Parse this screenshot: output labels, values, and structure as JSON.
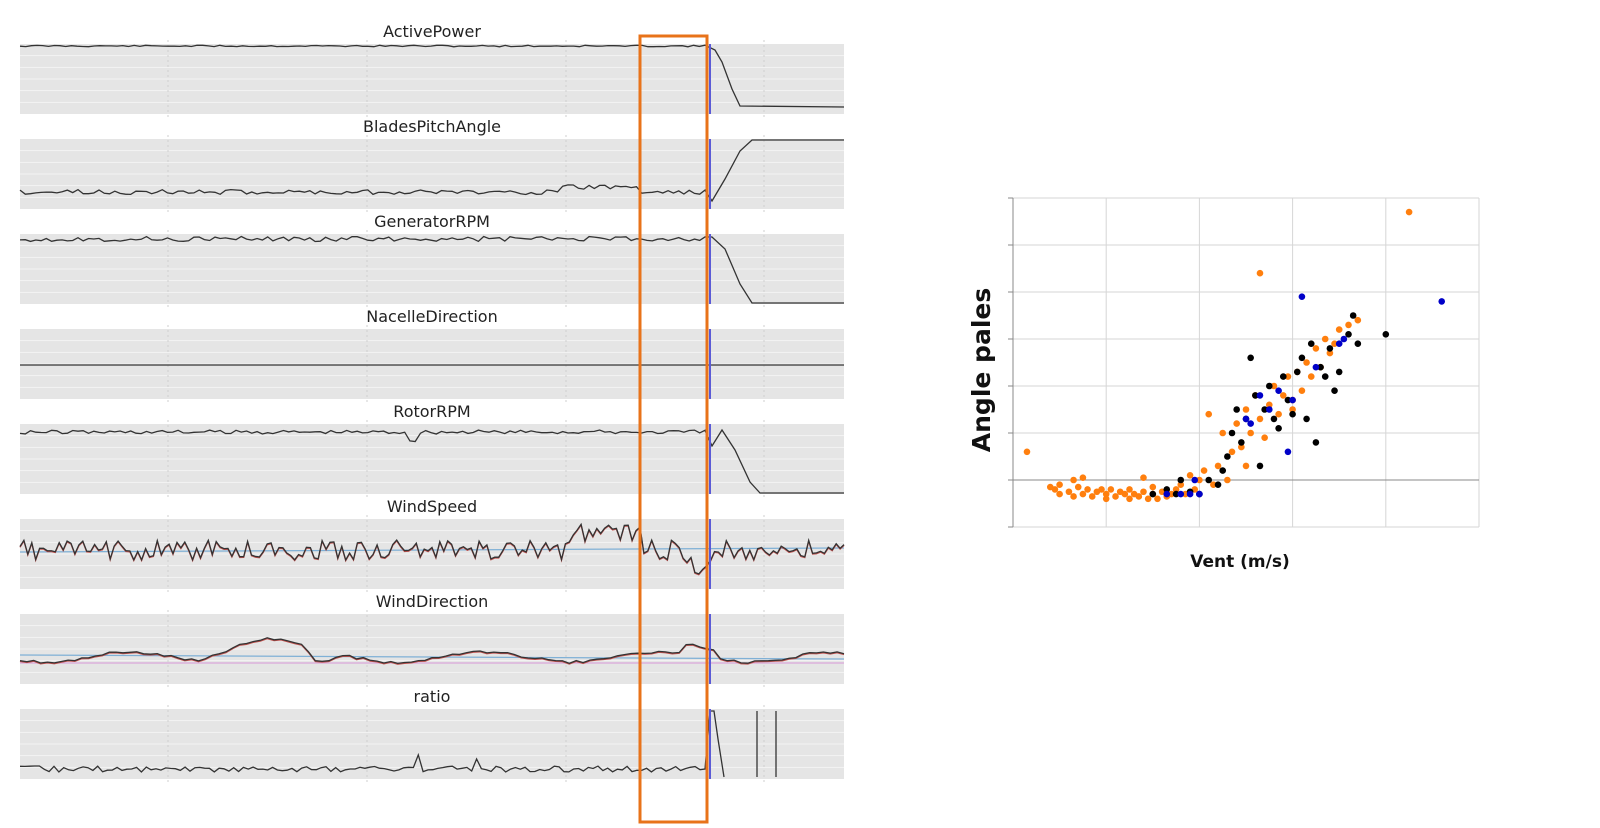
{
  "chart_data": [
    {
      "type": "line",
      "subplots": true,
      "panels": [
        {
          "title": "ActivePower"
        },
        {
          "title": "BladesPitchAngle"
        },
        {
          "title": "GeneratorRPM"
        },
        {
          "title": "NacelleDirection"
        },
        {
          "title": "RotorRPM"
        },
        {
          "title": "WindSpeed"
        },
        {
          "title": "WindDirection"
        },
        {
          "title": "ratio"
        }
      ],
      "grid": true,
      "highlight_box": "orange vertical rectangle spanning all panels, just before the event line",
      "event_line_color": "#5b5bd6"
    },
    {
      "type": "scatter",
      "title": "",
      "xlabel": "Vent (m/s)",
      "ylabel": "Angle pales",
      "xlim": [
        0,
        10
      ],
      "ylim": [
        -1,
        6
      ],
      "grid": true,
      "series": [
        {
          "color": "#ff7f0e",
          "points": [
            [
              0.3,
              0.6
            ],
            [
              0.8,
              -0.15
            ],
            [
              0.9,
              -0.2
            ],
            [
              1.0,
              -0.1
            ],
            [
              1.0,
              -0.3
            ],
            [
              1.2,
              -0.25
            ],
            [
              1.3,
              0.0
            ],
            [
              1.3,
              -0.35
            ],
            [
              1.4,
              -0.15
            ],
            [
              1.5,
              0.05
            ],
            [
              1.5,
              -0.3
            ],
            [
              1.6,
              -0.2
            ],
            [
              1.7,
              -0.35
            ],
            [
              1.8,
              -0.25
            ],
            [
              1.9,
              -0.2
            ],
            [
              2.0,
              -0.3
            ],
            [
              2.0,
              -0.4
            ],
            [
              2.1,
              -0.2
            ],
            [
              2.2,
              -0.35
            ],
            [
              2.3,
              -0.25
            ],
            [
              2.4,
              -0.3
            ],
            [
              2.5,
              -0.4
            ],
            [
              2.5,
              -0.2
            ],
            [
              2.6,
              -0.3
            ],
            [
              2.7,
              -0.35
            ],
            [
              2.8,
              -0.25
            ],
            [
              2.8,
              0.05
            ],
            [
              2.9,
              -0.4
            ],
            [
              3.0,
              -0.3
            ],
            [
              3.0,
              -0.15
            ],
            [
              3.1,
              -0.4
            ],
            [
              3.2,
              -0.25
            ],
            [
              3.3,
              -0.35
            ],
            [
              3.4,
              -0.3
            ],
            [
              3.5,
              -0.2
            ],
            [
              3.6,
              -0.1
            ],
            [
              3.7,
              -0.3
            ],
            [
              3.8,
              0.1
            ],
            [
              3.9,
              -0.2
            ],
            [
              4.0,
              0.0
            ],
            [
              4.1,
              0.2
            ],
            [
              4.2,
              1.4
            ],
            [
              4.3,
              -0.1
            ],
            [
              4.4,
              0.3
            ],
            [
              4.5,
              1.0
            ],
            [
              4.6,
              0.0
            ],
            [
              4.7,
              0.6
            ],
            [
              4.8,
              1.2
            ],
            [
              4.9,
              0.7
            ],
            [
              5.0,
              1.5
            ],
            [
              5.0,
              0.3
            ],
            [
              5.1,
              1.0
            ],
            [
              5.2,
              1.8
            ],
            [
              5.3,
              1.3
            ],
            [
              5.3,
              4.4
            ],
            [
              5.4,
              0.9
            ],
            [
              5.5,
              1.6
            ],
            [
              5.6,
              2.0
            ],
            [
              5.7,
              1.4
            ],
            [
              5.8,
              1.8
            ],
            [
              5.9,
              2.2
            ],
            [
              6.0,
              1.7
            ],
            [
              6.0,
              1.5
            ],
            [
              6.1,
              2.3
            ],
            [
              6.2,
              1.9
            ],
            [
              6.3,
              2.5
            ],
            [
              6.4,
              2.2
            ],
            [
              6.5,
              2.8
            ],
            [
              6.6,
              2.4
            ],
            [
              6.7,
              3.0
            ],
            [
              6.8,
              2.7
            ],
            [
              6.9,
              2.9
            ],
            [
              7.0,
              3.2
            ],
            [
              7.2,
              3.3
            ],
            [
              7.4,
              3.4
            ],
            [
              8.5,
              5.7
            ]
          ]
        },
        {
          "color": "#000000",
          "points": [
            [
              3.0,
              -0.3
            ],
            [
              3.3,
              -0.2
            ],
            [
              3.5,
              -0.3
            ],
            [
              3.6,
              0.0
            ],
            [
              3.8,
              -0.25
            ],
            [
              4.0,
              -0.3
            ],
            [
              4.2,
              0.0
            ],
            [
              4.4,
              -0.1
            ],
            [
              4.5,
              0.2
            ],
            [
              4.6,
              0.5
            ],
            [
              4.7,
              1.0
            ],
            [
              4.8,
              1.5
            ],
            [
              4.9,
              0.8
            ],
            [
              5.0,
              1.3
            ],
            [
              5.1,
              2.6
            ],
            [
              5.2,
              1.8
            ],
            [
              5.3,
              0.3
            ],
            [
              5.4,
              1.5
            ],
            [
              5.5,
              2.0
            ],
            [
              5.6,
              1.3
            ],
            [
              5.7,
              1.1
            ],
            [
              5.8,
              2.2
            ],
            [
              5.9,
              1.7
            ],
            [
              6.0,
              1.4
            ],
            [
              6.1,
              2.3
            ],
            [
              6.2,
              2.6
            ],
            [
              6.3,
              1.3
            ],
            [
              6.4,
              2.9
            ],
            [
              6.5,
              0.8
            ],
            [
              6.6,
              2.4
            ],
            [
              6.7,
              2.2
            ],
            [
              6.8,
              2.8
            ],
            [
              6.9,
              1.9
            ],
            [
              7.0,
              2.3
            ],
            [
              7.2,
              3.1
            ],
            [
              7.3,
              3.5
            ],
            [
              7.4,
              2.9
            ],
            [
              8.0,
              3.1
            ]
          ]
        },
        {
          "color": "#0000c8",
          "points": [
            [
              3.3,
              -0.3
            ],
            [
              3.6,
              -0.3
            ],
            [
              3.8,
              -0.3
            ],
            [
              3.9,
              0.0
            ],
            [
              4.0,
              -0.3
            ],
            [
              5.0,
              1.3
            ],
            [
              5.1,
              1.2
            ],
            [
              5.3,
              1.8
            ],
            [
              5.5,
              1.5
            ],
            [
              5.7,
              1.9
            ],
            [
              5.9,
              0.6
            ],
            [
              6.0,
              1.7
            ],
            [
              6.2,
              3.9
            ],
            [
              6.5,
              2.4
            ],
            [
              7.0,
              2.9
            ],
            [
              7.1,
              3.0
            ],
            [
              9.2,
              3.8
            ]
          ]
        }
      ]
    }
  ]
}
